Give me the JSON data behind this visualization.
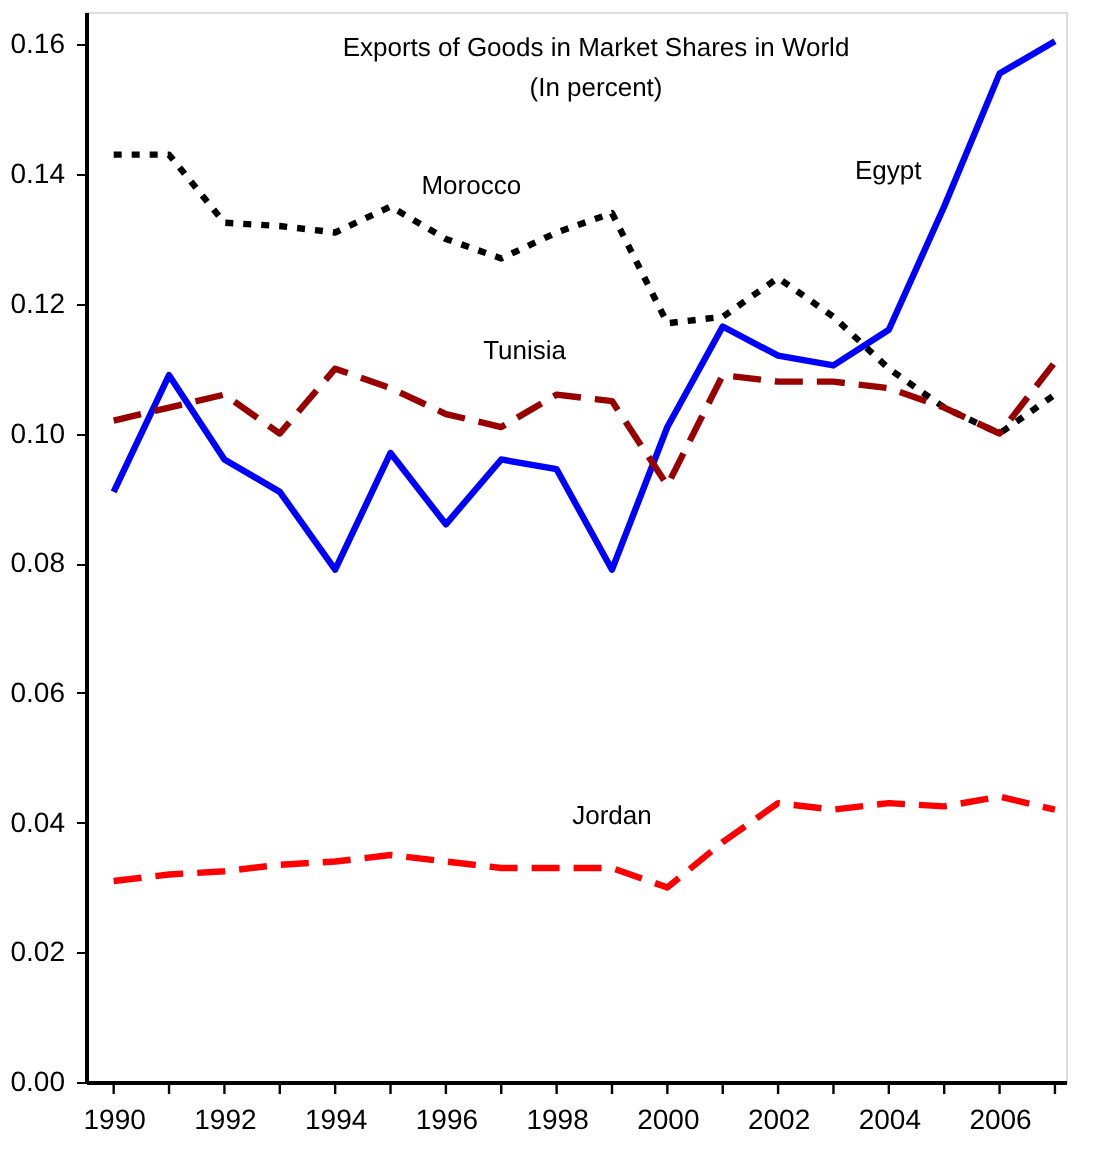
{
  "chart_data": {
    "type": "line",
    "title": "Exports of Goods in Market Shares in World",
    "subtitle": "(In percent)",
    "x": [
      1990,
      1991,
      1992,
      1993,
      1994,
      1995,
      1996,
      1997,
      1998,
      1999,
      2000,
      2001,
      2002,
      2003,
      2004,
      2005,
      2006,
      2007
    ],
    "series": [
      {
        "name": "Egypt",
        "color": "#0000ff",
        "line_style": "solid",
        "values": [
          0.091,
          0.109,
          0.096,
          0.091,
          0.079,
          0.097,
          0.086,
          0.096,
          0.0945,
          0.079,
          0.101,
          0.1165,
          0.112,
          0.1105,
          0.116,
          0.135,
          0.1555,
          0.1605
        ]
      },
      {
        "name": "Morocco",
        "color": "#000000",
        "line_style": "dotted",
        "values": [
          0.143,
          0.143,
          0.1325,
          0.132,
          0.131,
          0.135,
          0.13,
          0.127,
          0.131,
          0.134,
          0.117,
          0.118,
          0.124,
          0.118,
          0.11,
          0.104,
          0.1,
          0.106
        ]
      },
      {
        "name": "Tunisia",
        "color": "#990000",
        "line_style": "dashed",
        "values": [
          0.102,
          0.104,
          0.106,
          0.1,
          0.11,
          0.107,
          0.103,
          0.101,
          0.106,
          0.105,
          0.092,
          0.109,
          0.108,
          0.108,
          0.107,
          0.104,
          0.1,
          0.111
        ]
      },
      {
        "name": "Jordan",
        "color": "#ff0000",
        "line_style": "dashed",
        "values": [
          0.031,
          0.032,
          0.0325,
          0.0335,
          0.034,
          0.035,
          0.034,
          0.033,
          0.033,
          0.033,
          0.03,
          0.037,
          0.043,
          0.042,
          0.043,
          0.0425,
          0.044,
          0.042
        ]
      }
    ],
    "xlim": [
      1989.5,
      2007.2
    ],
    "ylim": [
      0,
      0.165
    ],
    "xticks": [
      {
        "value": 1990,
        "label": "1990"
      },
      {
        "value": 1991,
        "label": null
      },
      {
        "value": 1992,
        "label": "1992"
      },
      {
        "value": 1993,
        "label": null
      },
      {
        "value": 1994,
        "label": "1994"
      },
      {
        "value": 1995,
        "label": null
      },
      {
        "value": 1996,
        "label": "1996"
      },
      {
        "value": 1997,
        "label": null
      },
      {
        "value": 1998,
        "label": "1998"
      },
      {
        "value": 1999,
        "label": null
      },
      {
        "value": 2000,
        "label": "2000"
      },
      {
        "value": 2001,
        "label": null
      },
      {
        "value": 2002,
        "label": "2002"
      },
      {
        "value": 2003,
        "label": null
      },
      {
        "value": 2004,
        "label": "2004"
      },
      {
        "value": 2005,
        "label": null
      },
      {
        "value": 2006,
        "label": "2006"
      },
      {
        "value": 2007,
        "label": null
      }
    ],
    "yticks": [
      {
        "value": 0,
        "label": "0.00"
      },
      {
        "value": 0.02,
        "label": "0.02"
      },
      {
        "value": 0.04,
        "label": "0.04"
      },
      {
        "value": 0.06,
        "label": "0.06"
      },
      {
        "value": 0.08,
        "label": "0.08"
      },
      {
        "value": 0.1,
        "label": "0.10"
      },
      {
        "value": 0.12,
        "label": "0.12"
      },
      {
        "value": 0.14,
        "label": "0.14"
      },
      {
        "value": 0.16,
        "label": "0.16"
      }
    ],
    "grid": false,
    "legend": false
  }
}
